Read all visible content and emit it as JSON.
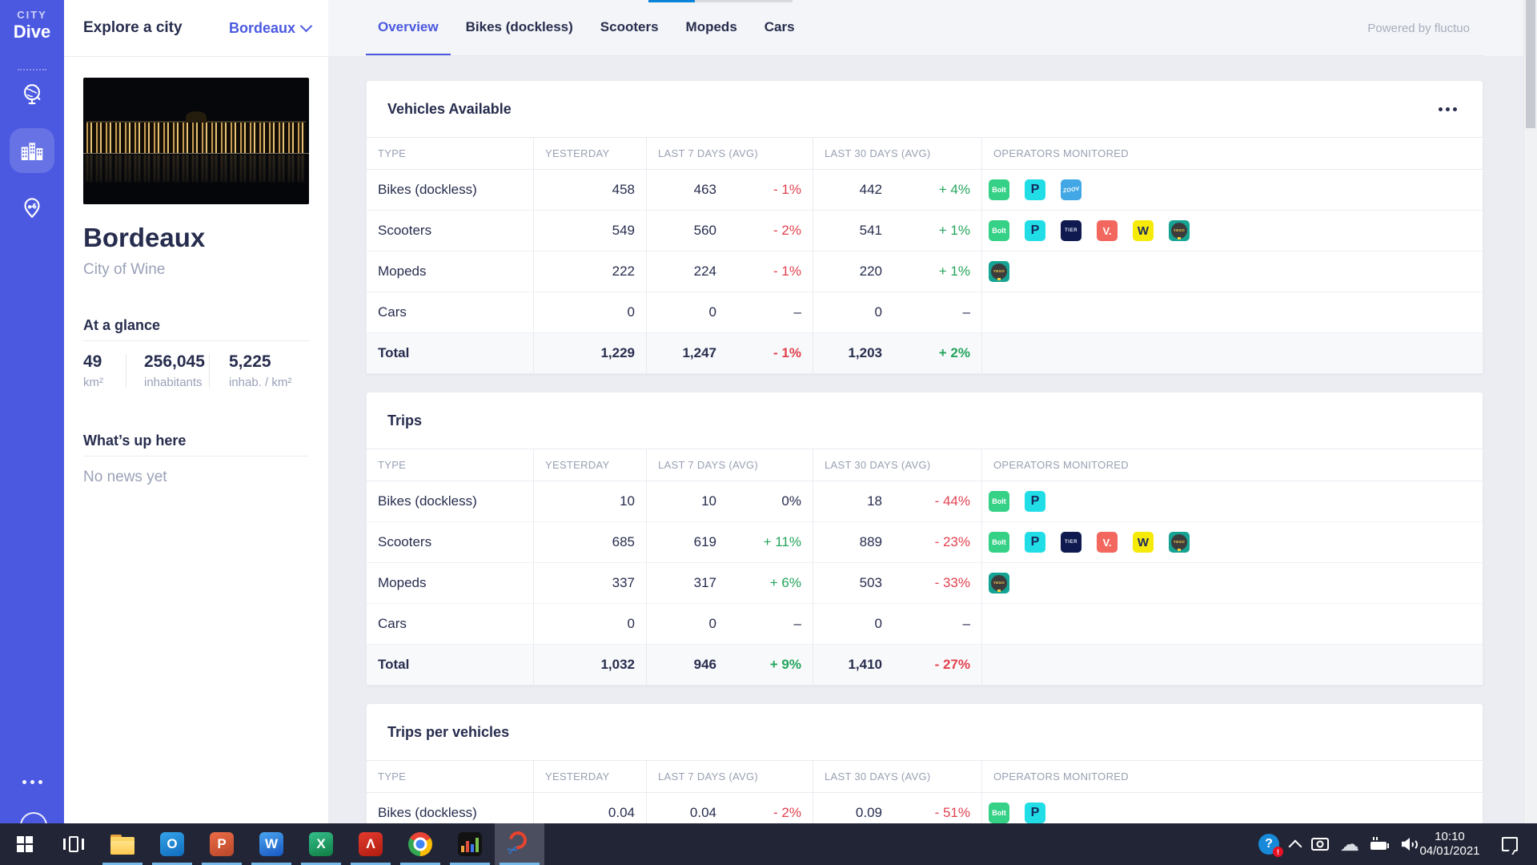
{
  "colors": {
    "accent": "#4b59e0",
    "positive": "#23a55c",
    "negative": "#e2414e"
  },
  "sidebar": {
    "logo_top": "CITY",
    "logo_bottom": "Dive"
  },
  "city_panel": {
    "header": "Explore a city",
    "city_selector": "Bordeaux",
    "city_name": "Bordeaux",
    "city_tagline": "City of Wine",
    "at_a_glance_title": "At a glance",
    "stats": [
      {
        "value": "49",
        "label": "km²"
      },
      {
        "value": "256,045",
        "label": "inhabitants"
      },
      {
        "value": "5,225",
        "label": "inhab. / km²"
      }
    ],
    "whats_up_title": "What’s up here",
    "whats_up_empty": "No news yet"
  },
  "main": {
    "tabs": [
      "Overview",
      "Bikes (dockless)",
      "Scooters",
      "Mopeds",
      "Cars"
    ],
    "active_tab_index": 0,
    "powered_by": "Powered by fluctuo",
    "columns": [
      "TYPE",
      "YESTERDAY",
      "LAST 7 DAYS (AVG)",
      "LAST 30 DAYS (AVG)",
      "OPERATORS MONITORED"
    ],
    "tables": [
      {
        "title": "Vehicles Available",
        "has_menu": true,
        "rows": [
          {
            "type": "Bikes (dockless)",
            "yesterday": "458",
            "last7": "463",
            "last7_pct": "- 1%",
            "last7_trend": "down",
            "last30": "442",
            "last30_pct": "+ 4%",
            "last30_trend": "up",
            "operators": [
              "bolt",
              "pony",
              "zoov"
            ]
          },
          {
            "type": "Scooters",
            "yesterday": "549",
            "last7": "560",
            "last7_pct": "- 2%",
            "last7_trend": "down",
            "last30": "541",
            "last30_pct": "+ 1%",
            "last30_trend": "up",
            "operators": [
              "bolt",
              "pony",
              "tier",
              "voi",
              "wind",
              "yego"
            ]
          },
          {
            "type": "Mopeds",
            "yesterday": "222",
            "last7": "224",
            "last7_pct": "- 1%",
            "last7_trend": "down",
            "last30": "220",
            "last30_pct": "+ 1%",
            "last30_trend": "up",
            "operators": [
              "yego"
            ]
          },
          {
            "type": "Cars",
            "yesterday": "0",
            "last7": "0",
            "last7_pct": "–",
            "last7_trend": "none",
            "last30": "0",
            "last30_pct": "–",
            "last30_trend": "none",
            "operators": []
          },
          {
            "type": "Total",
            "is_total": true,
            "yesterday": "1,229",
            "last7": "1,247",
            "last7_pct": "- 1%",
            "last7_trend": "down",
            "last30": "1,203",
            "last30_pct": "+ 2%",
            "last30_trend": "up",
            "operators": []
          }
        ]
      },
      {
        "title": "Trips",
        "has_menu": false,
        "rows": [
          {
            "type": "Bikes (dockless)",
            "yesterday": "10",
            "last7": "10",
            "last7_pct": "0%",
            "last7_trend": "flat",
            "last30": "18",
            "last30_pct": "- 44%",
            "last30_trend": "down",
            "operators": [
              "bolt",
              "pony"
            ]
          },
          {
            "type": "Scooters",
            "yesterday": "685",
            "last7": "619",
            "last7_pct": "+ 11%",
            "last7_trend": "up",
            "last30": "889",
            "last30_pct": "- 23%",
            "last30_trend": "down",
            "operators": [
              "bolt",
              "pony",
              "tier",
              "voi",
              "wind",
              "yego"
            ]
          },
          {
            "type": "Mopeds",
            "yesterday": "337",
            "last7": "317",
            "last7_pct": "+ 6%",
            "last7_trend": "up",
            "last30": "503",
            "last30_pct": "- 33%",
            "last30_trend": "down",
            "operators": [
              "yego"
            ]
          },
          {
            "type": "Cars",
            "yesterday": "0",
            "last7": "0",
            "last7_pct": "–",
            "last7_trend": "none",
            "last30": "0",
            "last30_pct": "–",
            "last30_trend": "none",
            "operators": []
          },
          {
            "type": "Total",
            "is_total": true,
            "yesterday": "1,032",
            "last7": "946",
            "last7_pct": "+ 9%",
            "last7_trend": "up",
            "last30": "1,410",
            "last30_pct": "- 27%",
            "last30_trend": "down",
            "operators": []
          }
        ]
      },
      {
        "title": "Trips per vehicles",
        "has_menu": false,
        "rows": [
          {
            "type": "Bikes (dockless)",
            "yesterday": "0.04",
            "last7": "0.04",
            "last7_pct": "- 2%",
            "last7_trend": "down",
            "last30": "0.09",
            "last30_pct": "- 51%",
            "last30_trend": "down",
            "operators": [
              "bolt",
              "pony"
            ]
          }
        ]
      }
    ]
  },
  "operators": {
    "bolt": {
      "label": "Bolt",
      "bg": "#34d186",
      "fg": "#ffffff"
    },
    "pony": {
      "label": "P",
      "bg": "#21dde6",
      "fg": "#152a5e"
    },
    "zoov": {
      "label": "ZOOV",
      "bg": "#41a7e5",
      "fg": "#ffffff"
    },
    "tier": {
      "label": "TIER",
      "bg": "#0f1a50",
      "fg": "#dfe3f2"
    },
    "voi": {
      "label": "V.",
      "bg": "#f2685f",
      "fg": "#ffffff"
    },
    "wind": {
      "label": "W",
      "bg": "#f6ea0a",
      "fg": "#1c2a5e"
    },
    "yego": {
      "label": "YEGO",
      "bg": "#16a394",
      "fg": "#ffd24a",
      "badge": "#3c3c3c"
    }
  },
  "taskbar": {
    "clock_time": "10:10",
    "clock_date": "04/01/2021",
    "apps": [
      {
        "name": "file-explorer",
        "kind": "folder"
      },
      {
        "name": "outlook",
        "kind": "letter",
        "glyph": "O",
        "color_top": "#35a3e8",
        "color_bottom": "#0f6cbd"
      },
      {
        "name": "powerpoint",
        "kind": "letter",
        "glyph": "P",
        "color_top": "#ed6c47",
        "color_bottom": "#b7472a"
      },
      {
        "name": "word",
        "kind": "letter",
        "glyph": "W",
        "color_top": "#4aa4ef",
        "color_bottom": "#1857c3"
      },
      {
        "name": "excel",
        "kind": "letter",
        "glyph": "X",
        "color_top": "#35c08c",
        "color_bottom": "#0f7c42"
      },
      {
        "name": "acrobat",
        "kind": "letter",
        "glyph": "Λ",
        "color_top": "#e23b2e",
        "color_bottom": "#b01c10"
      },
      {
        "name": "chrome",
        "kind": "chrome"
      },
      {
        "name": "equalizer",
        "kind": "equalizer"
      },
      {
        "name": "snipping-tool",
        "kind": "snip",
        "active": true
      }
    ]
  }
}
